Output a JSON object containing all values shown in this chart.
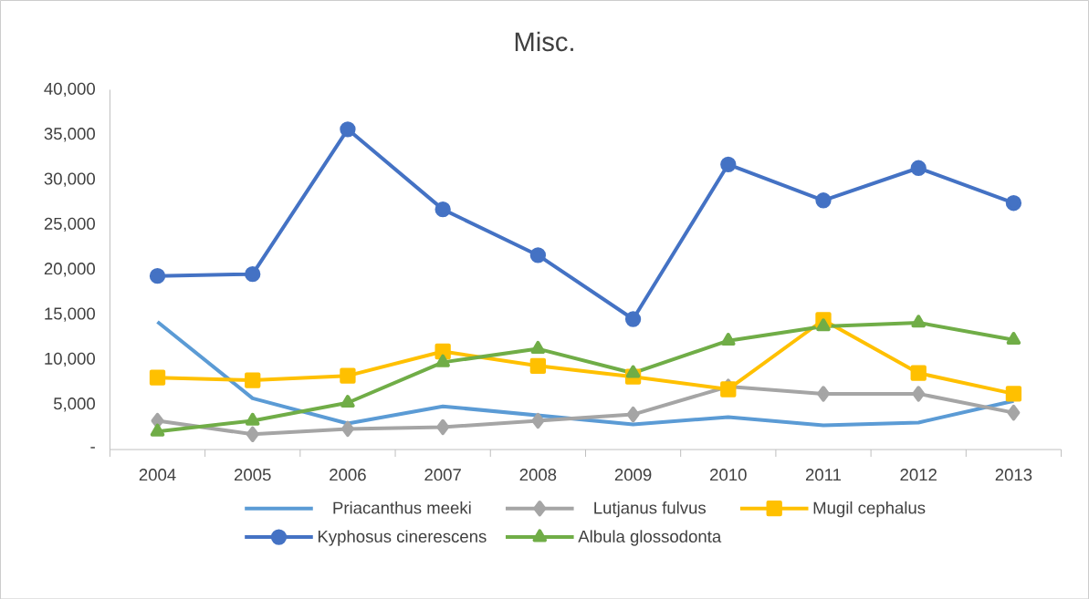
{
  "chart_data": {
    "type": "line",
    "title": "Misc.",
    "categories": [
      "2004",
      "2005",
      "2006",
      "2007",
      "2008",
      "2009",
      "2010",
      "2011",
      "2012",
      "2013"
    ],
    "series": [
      {
        "name": "Priacanthus meeki",
        "color": "#5b9bd5",
        "marker": "none",
        "values": [
          14200,
          5700,
          2900,
          4800,
          3800,
          2800,
          3600,
          2700,
          3000,
          5400
        ]
      },
      {
        "name": "Lutjanus fulvus",
        "color": "#a5a5a5",
        "marker": "diamond",
        "values": [
          3200,
          1700,
          2300,
          2500,
          3200,
          3900,
          7000,
          6200,
          6200,
          4100
        ]
      },
      {
        "name": "Mugil cephalus",
        "color": "#ffc000",
        "marker": "square",
        "values": [
          8000,
          7700,
          8200,
          10900,
          9300,
          8100,
          6700,
          14400,
          8500,
          6200
        ]
      },
      {
        "name": "Kyphosus cinerescens",
        "color": "#4472c4",
        "marker": "circle",
        "values": [
          19300,
          19500,
          35600,
          26700,
          21600,
          14500,
          31700,
          27700,
          31300,
          27400
        ]
      },
      {
        "name": "Albula glossodonta",
        "color": "#70ad47",
        "marker": "triangle",
        "values": [
          2000,
          3200,
          5200,
          9700,
          11200,
          8500,
          12100,
          13700,
          14100,
          12200
        ]
      }
    ],
    "ylim": [
      0,
      40000
    ],
    "yticks": [
      {
        "value": 0,
        "label": "-"
      },
      {
        "value": 5000,
        "label": "5,000"
      },
      {
        "value": 10000,
        "label": "10,000"
      },
      {
        "value": 15000,
        "label": "15,000"
      },
      {
        "value": 20000,
        "label": "20,000"
      },
      {
        "value": 25000,
        "label": "25,000"
      },
      {
        "value": 30000,
        "label": "30,000"
      },
      {
        "value": 35000,
        "label": "35,000"
      },
      {
        "value": 40000,
        "label": "40,000"
      }
    ],
    "legend": "bottom"
  }
}
